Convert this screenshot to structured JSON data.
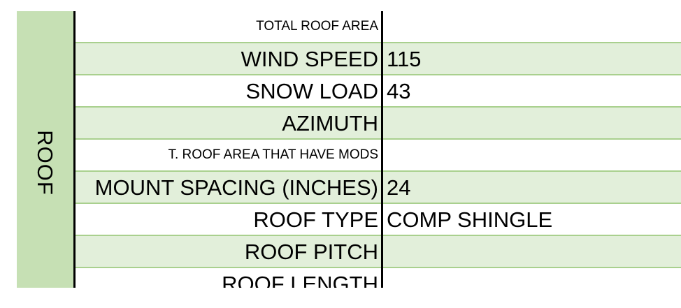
{
  "section": {
    "label": "ROOF"
  },
  "rows": [
    {
      "label": "TOTAL ROOF AREA",
      "value": ""
    },
    {
      "label": "WIND SPEED",
      "value": "115"
    },
    {
      "label": "SNOW LOAD",
      "value": "43"
    },
    {
      "label": "AZIMUTH",
      "value": ""
    },
    {
      "label": "T. ROOF AREA THAT HAVE MODS",
      "value": ""
    },
    {
      "label": "MOUNT SPACING (INCHES)",
      "value": "24"
    },
    {
      "label": "ROOF TYPE",
      "value": "COMP SHINGLE"
    },
    {
      "label": "ROOF PITCH",
      "value": ""
    },
    {
      "label": "ROOF LENGTH",
      "value": ""
    }
  ],
  "colors": {
    "band": "#c6e0b4",
    "shaded_row": "#e2efda",
    "row_border": "#a9d08e",
    "column_border": "#000000"
  }
}
